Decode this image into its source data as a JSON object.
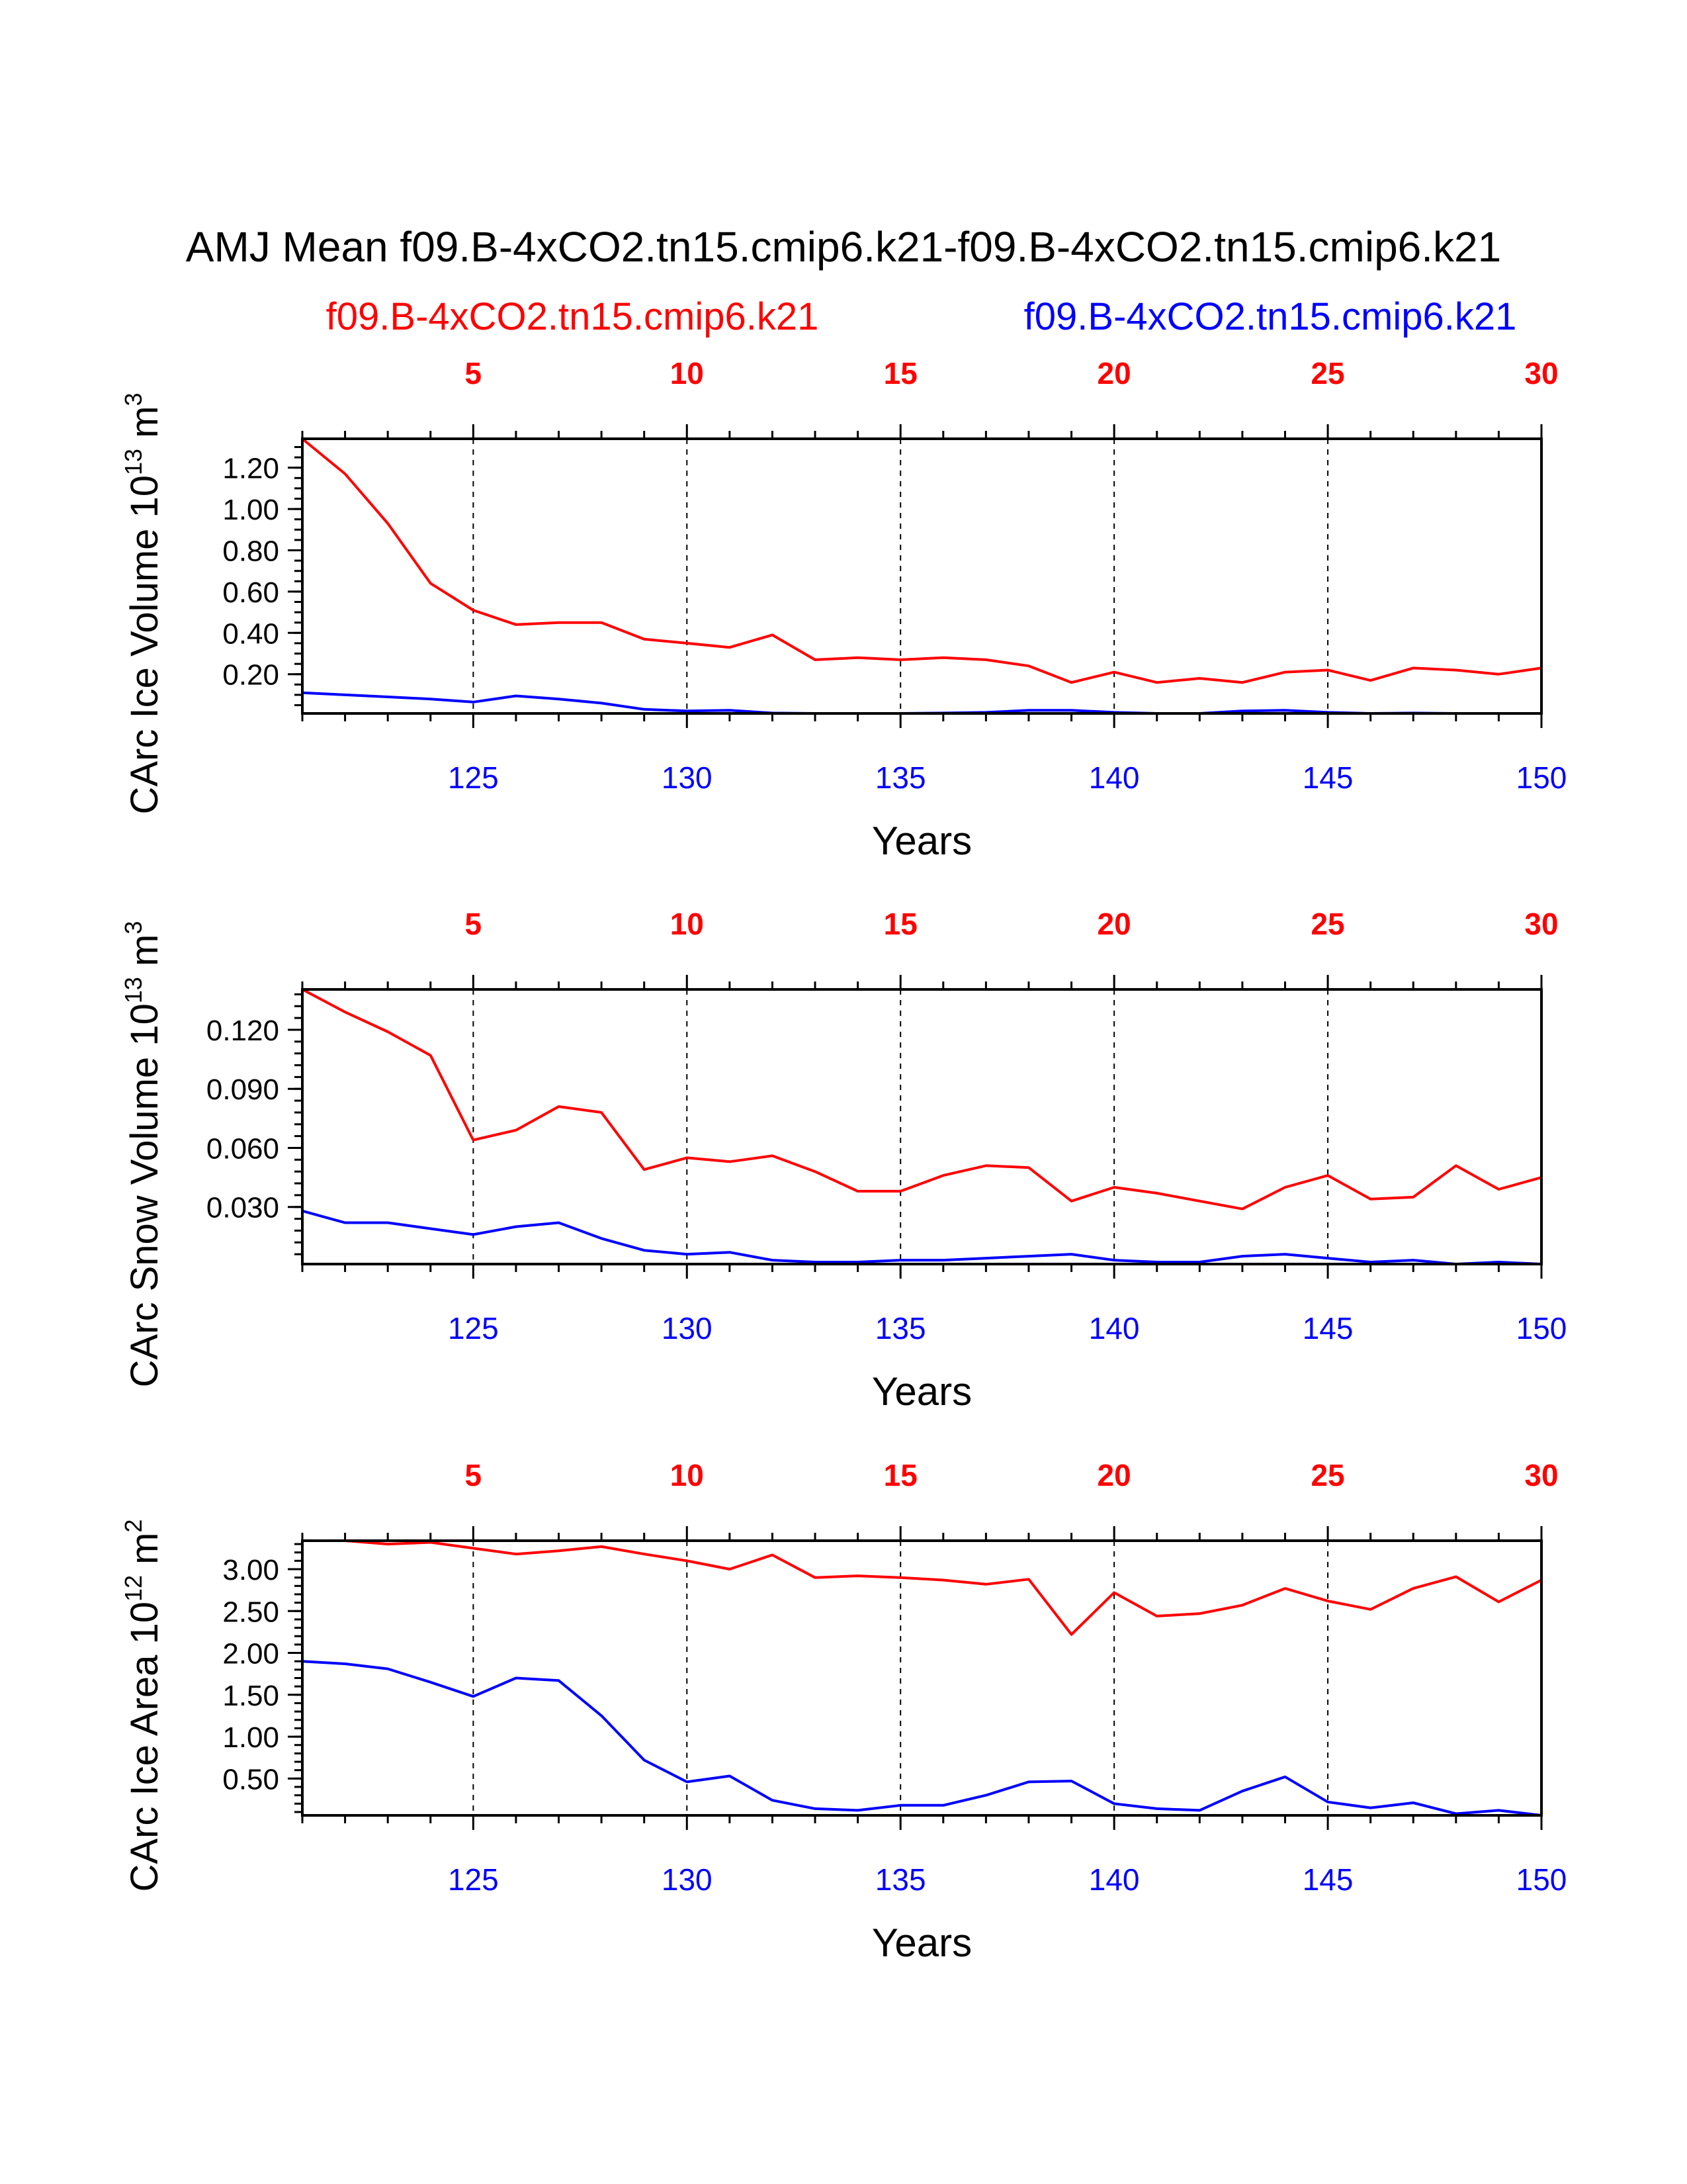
{
  "title": "AMJ Mean f09.B-4xCO2.tn15.cmip6.k21-f09.B-4xCO2.tn15.cmip6.k21",
  "legend": {
    "red_label": "f09.B-4xCO2.tn15.cmip6.k21",
    "blue_label": "f09.B-4xCO2.tn15.cmip6.k21"
  },
  "colors": {
    "red": "#ff0000",
    "blue": "#0000ff",
    "black": "#000000"
  },
  "chart_data": [
    {
      "type": "line",
      "ylabel": "CArc Ice Volume 10",
      "ylabel_sup": "13",
      "ylabel_unit": " m",
      "ylabel_unit_sup": "3",
      "xlabel": "Years",
      "xlim": [
        121,
        150
      ],
      "ylim": [
        0.01,
        1.34
      ],
      "yticks": [
        0.2,
        0.4,
        0.6,
        0.8,
        1.0,
        1.2
      ],
      "yticklabels": [
        "0.20",
        "0.40",
        "0.60",
        "0.80",
        "1.00",
        "1.20"
      ],
      "yminor_step": 0.05,
      "bottom_ticks": [
        125,
        130,
        135,
        140,
        145,
        150
      ],
      "top_ticks": [
        5,
        10,
        15,
        20,
        25,
        30
      ],
      "top_offset": 120,
      "x": [
        121,
        122,
        123,
        124,
        125,
        126,
        127,
        128,
        129,
        130,
        131,
        132,
        133,
        134,
        135,
        136,
        137,
        138,
        139,
        140,
        141,
        142,
        143,
        144,
        145,
        146,
        147,
        148,
        149,
        150
      ],
      "series": [
        {
          "name": "f09.B-4xCO2.tn15.cmip6.k21",
          "color": "red",
          "values": [
            1.34,
            1.17,
            0.93,
            0.64,
            0.51,
            0.44,
            0.45,
            0.45,
            0.37,
            0.35,
            0.33,
            0.39,
            0.27,
            0.28,
            0.27,
            0.28,
            0.27,
            0.24,
            0.16,
            0.21,
            0.16,
            0.18,
            0.16,
            0.21,
            0.22,
            0.17,
            0.23,
            0.22,
            0.2,
            0.23
          ]
        },
        {
          "name": "f09.B-4xCO2.tn15.cmip6.k21",
          "color": "blue",
          "values": [
            0.11,
            0.1,
            0.09,
            0.08,
            0.065,
            0.095,
            0.08,
            0.06,
            0.03,
            0.022,
            0.025,
            0.012,
            0.01,
            0.01,
            0.01,
            0.012,
            0.015,
            0.025,
            0.025,
            0.015,
            0.01,
            0.01,
            0.022,
            0.025,
            0.015,
            0.01,
            0.012,
            0.01,
            0.01,
            0.01
          ]
        }
      ]
    },
    {
      "type": "line",
      "ylabel": "CArc Snow Volume 10",
      "ylabel_sup": "13",
      "ylabel_unit": " m",
      "ylabel_unit_sup": "3",
      "xlabel": "Years",
      "xlim": [
        121,
        150
      ],
      "ylim": [
        0.001,
        0.1405
      ],
      "yticks": [
        0.03,
        0.06,
        0.09,
        0.12
      ],
      "yticklabels": [
        "0.030",
        "0.060",
        "0.090",
        "0.120"
      ],
      "yminor_step": 0.006,
      "bottom_ticks": [
        125,
        130,
        135,
        140,
        145,
        150
      ],
      "top_ticks": [
        5,
        10,
        15,
        20,
        25,
        30
      ],
      "top_offset": 120,
      "x": [
        121,
        122,
        123,
        124,
        125,
        126,
        127,
        128,
        129,
        130,
        131,
        132,
        133,
        134,
        135,
        136,
        137,
        138,
        139,
        140,
        141,
        142,
        143,
        144,
        145,
        146,
        147,
        148,
        149,
        150
      ],
      "series": [
        {
          "name": "f09.B-4xCO2.tn15.cmip6.k21",
          "color": "red",
          "values": [
            0.1405,
            0.129,
            0.119,
            0.107,
            0.064,
            0.069,
            0.081,
            0.078,
            0.049,
            0.055,
            0.053,
            0.056,
            0.048,
            0.038,
            0.038,
            0.046,
            0.051,
            0.05,
            0.033,
            0.04,
            0.037,
            0.033,
            0.029,
            0.04,
            0.046,
            0.034,
            0.035,
            0.051,
            0.039,
            0.045
          ]
        },
        {
          "name": "f09.B-4xCO2.tn15.cmip6.k21",
          "color": "blue",
          "values": [
            0.028,
            0.022,
            0.022,
            0.019,
            0.016,
            0.02,
            0.022,
            0.014,
            0.008,
            0.006,
            0.007,
            0.003,
            0.002,
            0.002,
            0.003,
            0.003,
            0.004,
            0.005,
            0.006,
            0.003,
            0.002,
            0.002,
            0.005,
            0.006,
            0.004,
            0.002,
            0.003,
            0.001,
            0.002,
            0.001
          ]
        }
      ]
    },
    {
      "type": "line",
      "ylabel": "CArc Ice Area 10",
      "ylabel_sup": "12",
      "ylabel_unit": " m",
      "ylabel_unit_sup": "2",
      "xlabel": "Years",
      "xlim": [
        121,
        150
      ],
      "ylim": [
        0.06,
        3.34
      ],
      "yticks": [
        0.5,
        1.0,
        1.5,
        2.0,
        2.5,
        3.0
      ],
      "yticklabels": [
        "0.50",
        "1.00",
        "1.50",
        "2.00",
        "2.50",
        "3.00"
      ],
      "yminor_step": 0.1,
      "bottom_ticks": [
        125,
        130,
        135,
        140,
        145,
        150
      ],
      "top_ticks": [
        5,
        10,
        15,
        20,
        25,
        30
      ],
      "top_offset": 120,
      "x": [
        121,
        122,
        123,
        124,
        125,
        126,
        127,
        128,
        129,
        130,
        131,
        132,
        133,
        134,
        135,
        136,
        137,
        138,
        139,
        140,
        141,
        142,
        143,
        144,
        145,
        146,
        147,
        148,
        149,
        150
      ],
      "series": [
        {
          "name": "f09.B-4xCO2.tn15.cmip6.k21",
          "color": "red",
          "values": [
            3.34,
            3.34,
            3.3,
            3.32,
            3.25,
            3.18,
            3.22,
            3.27,
            3.18,
            3.1,
            3.0,
            3.17,
            2.9,
            2.92,
            2.9,
            2.87,
            2.82,
            2.88,
            2.22,
            2.72,
            2.44,
            2.47,
            2.57,
            2.77,
            2.62,
            2.52,
            2.77,
            2.91,
            2.61,
            2.87
          ]
        },
        {
          "name": "f09.B-4xCO2.tn15.cmip6.k21",
          "color": "blue",
          "values": [
            1.9,
            1.87,
            1.81,
            1.65,
            1.48,
            1.7,
            1.67,
            1.25,
            0.72,
            0.46,
            0.53,
            0.24,
            0.14,
            0.12,
            0.18,
            0.18,
            0.3,
            0.46,
            0.47,
            0.2,
            0.14,
            0.12,
            0.35,
            0.52,
            0.22,
            0.15,
            0.21,
            0.08,
            0.12,
            0.06
          ]
        }
      ]
    }
  ]
}
